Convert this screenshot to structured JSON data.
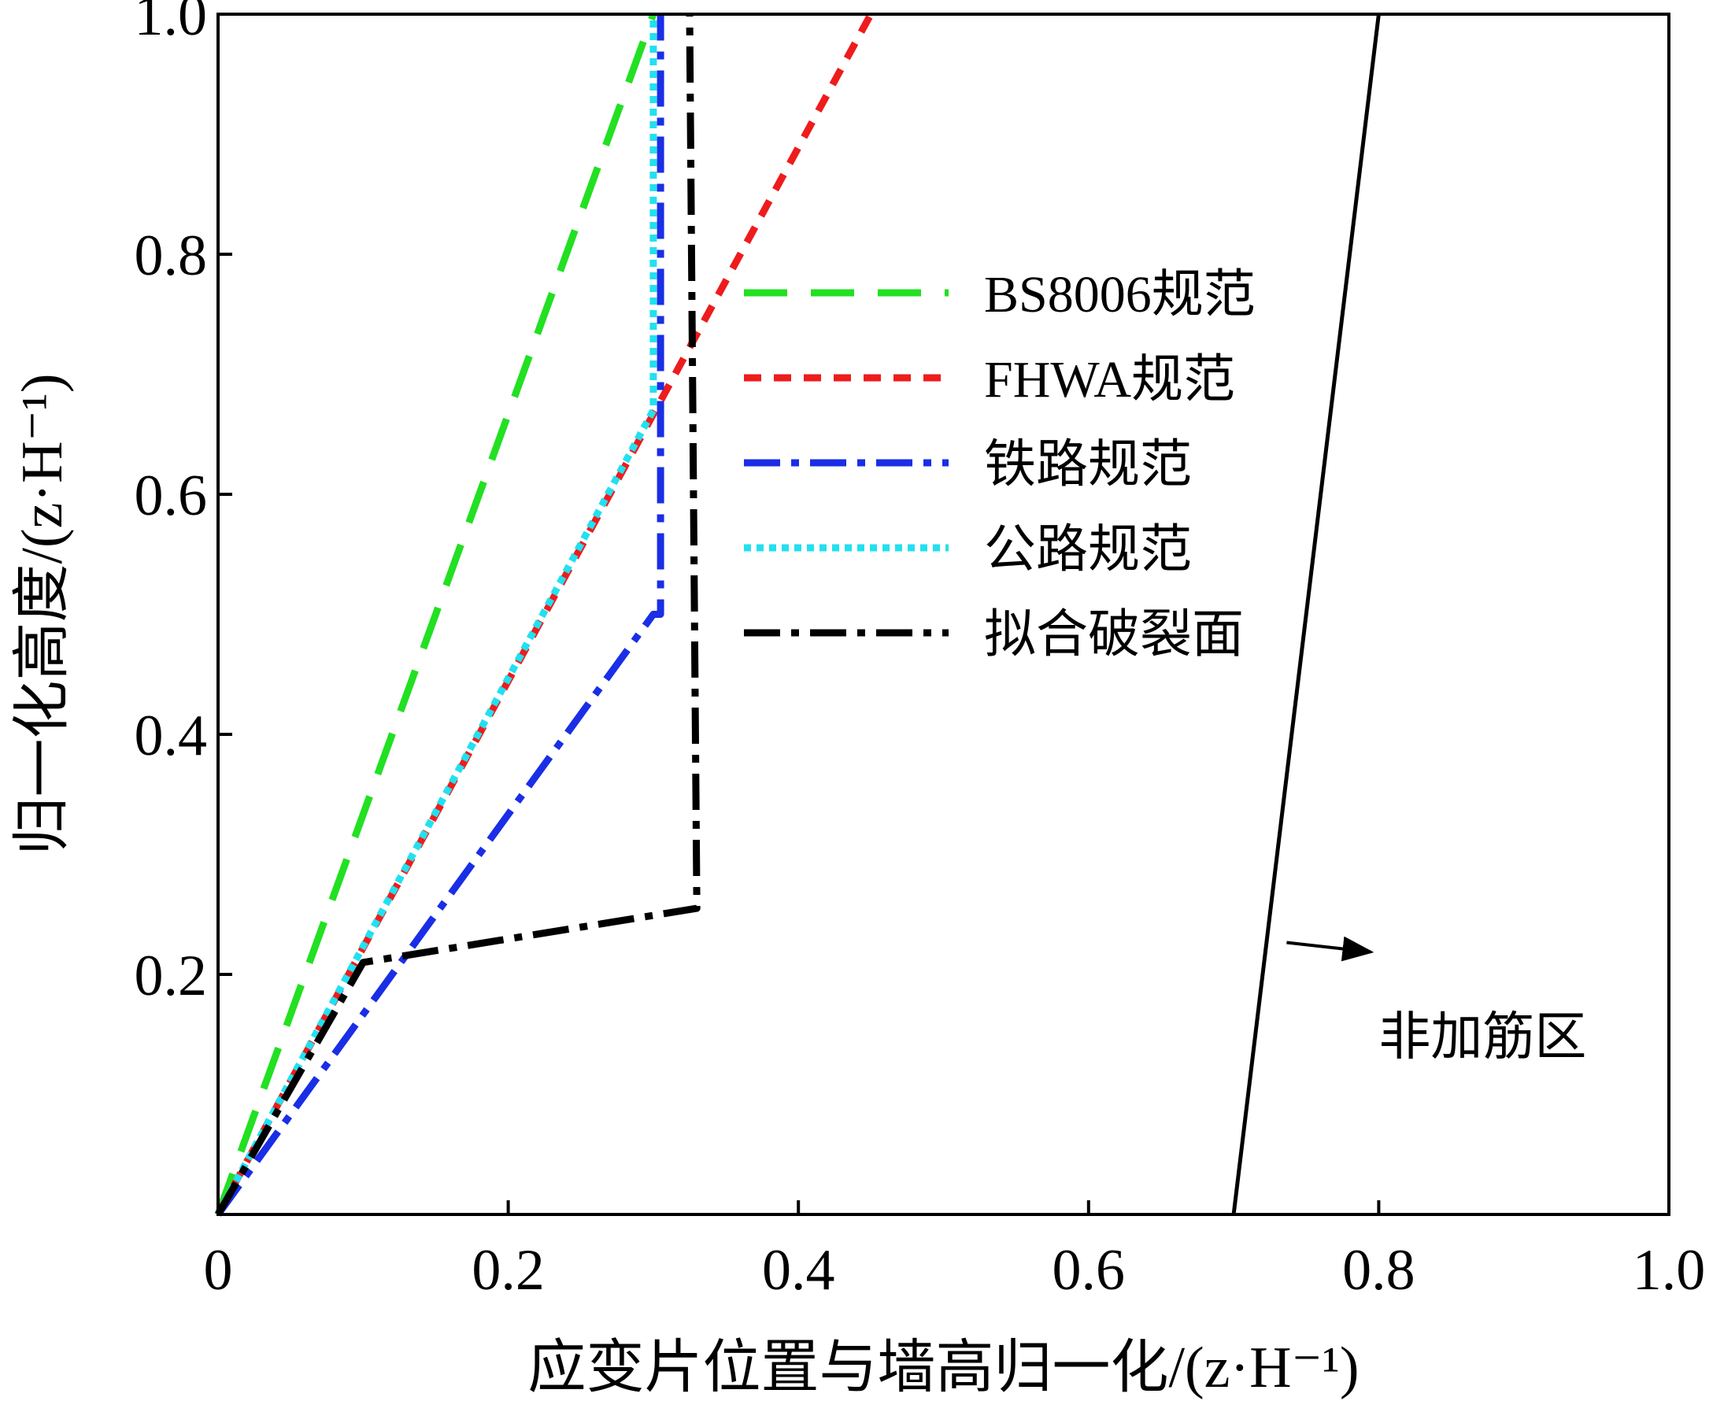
{
  "chart_data": {
    "type": "line",
    "title": "",
    "xlabel": "应变片位置与墙高归一化/(z·H⁻¹)",
    "ylabel": "归一化高度/(z·H⁻¹)",
    "xlim": [
      0,
      1.0
    ],
    "ylim": [
      0,
      1.0
    ],
    "xticks": [
      {
        "value": 0,
        "label": "0"
      },
      {
        "value": 0.2,
        "label": "0.2"
      },
      {
        "value": 0.4,
        "label": "0.4"
      },
      {
        "value": 0.6,
        "label": "0.6"
      },
      {
        "value": 0.8,
        "label": "0.8"
      },
      {
        "value": 1.0,
        "label": "1.0"
      }
    ],
    "yticks": [
      {
        "value": 0.2,
        "label": "0.2"
      },
      {
        "value": 0.4,
        "label": "0.4"
      },
      {
        "value": 0.6,
        "label": "0.6"
      },
      {
        "value": 0.8,
        "label": "0.8"
      },
      {
        "value": 1.0,
        "label": "1.0"
      }
    ],
    "grid": false,
    "legend_position": "center-right",
    "series": [
      {
        "name": "BS8006规范",
        "color": "#22e022",
        "style": "long-dash",
        "points": [
          [
            0.0,
            0.0
          ],
          [
            0.3,
            1.0
          ]
        ]
      },
      {
        "name": "FHWA规范",
        "color": "#ee1c1c",
        "style": "short-dash",
        "points": [
          [
            0.0,
            0.0
          ],
          [
            0.45,
            1.0
          ]
        ]
      },
      {
        "name": "铁路规范",
        "color": "#1a2ee6",
        "style": "dash-dot",
        "points": [
          [
            0.0,
            0.0
          ],
          [
            0.3,
            0.5
          ],
          [
            0.305,
            0.5
          ],
          [
            0.305,
            1.0
          ]
        ]
      },
      {
        "name": "公路规范",
        "color": "#22e0f0",
        "style": "dotted",
        "points": [
          [
            0.0,
            0.0
          ],
          [
            0.3,
            0.67
          ],
          [
            0.3,
            1.0
          ]
        ]
      },
      {
        "name": "拟合破裂面",
        "color": "#000000",
        "style": "dash-dot",
        "points": [
          [
            0.0,
            0.0
          ],
          [
            0.1,
            0.21
          ],
          [
            0.33,
            0.255
          ],
          [
            0.325,
            1.0
          ]
        ]
      },
      {
        "name": "",
        "color": "#000000",
        "style": "solid",
        "points": [
          [
            0.7,
            0.0
          ],
          [
            0.8,
            1.0
          ]
        ]
      }
    ],
    "annotations": [
      {
        "text": "非加筋区",
        "target": [
          0.73,
          0.22
        ],
        "text_at": [
          0.8,
          0.14
        ]
      }
    ]
  }
}
